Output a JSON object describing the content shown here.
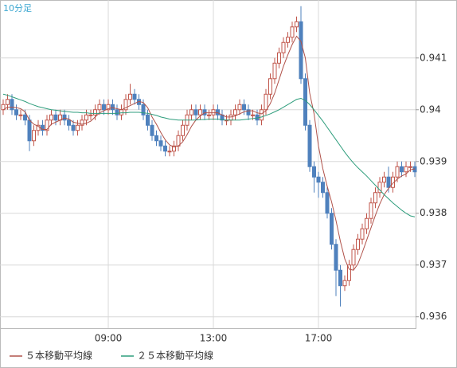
{
  "chart_data": {
    "type": "candlestick",
    "title": "10分足",
    "categories": [
      null,
      null,
      null,
      null,
      null,
      null,
      null,
      null,
      null,
      null,
      null,
      null,
      null,
      null,
      null,
      null,
      null,
      null,
      null,
      null,
      null,
      null,
      null,
      null,
      "09:00",
      null,
      null,
      null,
      null,
      null,
      null,
      null,
      null,
      null,
      null,
      null,
      null,
      null,
      null,
      null,
      null,
      null,
      null,
      null,
      null,
      null,
      null,
      null,
      "13:00",
      null,
      null,
      null,
      null,
      null,
      null,
      null,
      null,
      null,
      null,
      null,
      null,
      null,
      null,
      null,
      null,
      null,
      null,
      null,
      null,
      null,
      null,
      null,
      "17:00",
      null,
      null,
      null,
      null,
      null,
      null,
      null,
      null,
      null,
      null,
      null,
      null,
      null,
      null,
      null,
      null,
      null,
      null,
      null,
      null,
      null,
      null
    ],
    "open": [
      0.94,
      0.9401,
      0.9402,
      0.94,
      0.9399,
      0.9399,
      0.9398,
      0.9394,
      0.9396,
      0.9397,
      0.9396,
      0.9398,
      0.9399,
      0.9398,
      0.9399,
      0.9398,
      0.9397,
      0.9396,
      0.9397,
      0.9398,
      0.9399,
      0.9399,
      0.94,
      0.9401,
      0.94,
      0.9401,
      0.94,
      0.9399,
      0.94,
      0.9402,
      0.9403,
      0.9402,
      0.9401,
      0.9399,
      0.9397,
      0.9395,
      0.9394,
      0.9393,
      0.9392,
      0.9392,
      0.9393,
      0.9395,
      0.9397,
      0.9399,
      0.94,
      0.9399,
      0.94,
      0.9399,
      0.9399,
      0.94,
      0.9399,
      0.9398,
      0.9398,
      0.9399,
      0.94,
      0.9401,
      0.94,
      0.9399,
      0.9399,
      0.9398,
      0.94,
      0.9403,
      0.9406,
      0.9409,
      0.9411,
      0.9413,
      0.9414,
      0.9416,
      0.9417,
      0.9406,
      0.9397,
      0.9389,
      0.9387,
      0.9386,
      0.9384,
      0.938,
      0.9374,
      0.9369,
      0.9366,
      0.9367,
      0.937,
      0.9373,
      0.9375,
      0.9377,
      0.9379,
      0.9382,
      0.9384,
      0.9386,
      0.9387,
      0.9385,
      0.9387,
      0.9389,
      0.9388,
      0.9389,
      0.9389
    ],
    "high": [
      0.9402,
      0.9403,
      0.9403,
      0.9401,
      0.94,
      0.94,
      0.9399,
      0.9397,
      0.9398,
      0.9398,
      0.9399,
      0.94,
      0.94,
      0.94,
      0.94,
      0.9399,
      0.9398,
      0.9398,
      0.9399,
      0.94,
      0.94,
      0.9401,
      0.9402,
      0.9402,
      0.9402,
      0.9402,
      0.9401,
      0.9401,
      0.9403,
      0.9405,
      0.9404,
      0.9403,
      0.9402,
      0.94,
      0.9398,
      0.9396,
      0.9395,
      0.9394,
      0.9393,
      0.9394,
      0.9396,
      0.9398,
      0.94,
      0.9401,
      0.9401,
      0.9401,
      0.9401,
      0.94,
      0.9401,
      0.9401,
      0.94,
      0.9399,
      0.94,
      0.9401,
      0.9402,
      0.9402,
      0.9401,
      0.94,
      0.94,
      0.9401,
      0.9404,
      0.9407,
      0.941,
      0.9412,
      0.9414,
      0.9415,
      0.9417,
      0.9418,
      0.942,
      0.9407,
      0.9398,
      0.939,
      0.9388,
      0.9387,
      0.9385,
      0.9381,
      0.9375,
      0.937,
      0.9368,
      0.9371,
      0.9374,
      0.9376,
      0.9378,
      0.938,
      0.9383,
      0.9385,
      0.9387,
      0.9388,
      0.9389,
      0.9388,
      0.939,
      0.939,
      0.939,
      0.939,
      0.939
    ],
    "low": [
      0.9399,
      0.94,
      0.9399,
      0.9398,
      0.9398,
      0.9397,
      0.9392,
      0.9393,
      0.9395,
      0.9395,
      0.9395,
      0.9397,
      0.9397,
      0.9397,
      0.9397,
      0.9396,
      0.9395,
      0.9395,
      0.9396,
      0.9397,
      0.9398,
      0.9398,
      0.9399,
      0.9399,
      0.9399,
      0.9399,
      0.9398,
      0.9398,
      0.9399,
      0.9401,
      0.9401,
      0.94,
      0.9398,
      0.9396,
      0.9394,
      0.9393,
      0.9392,
      0.9391,
      0.9391,
      0.9391,
      0.9392,
      0.9394,
      0.9396,
      0.9398,
      0.9398,
      0.9398,
      0.9398,
      0.9398,
      0.9398,
      0.9398,
      0.9397,
      0.9397,
      0.9397,
      0.9398,
      0.9399,
      0.9399,
      0.9398,
      0.9398,
      0.9397,
      0.9397,
      0.9399,
      0.9402,
      0.9405,
      0.9408,
      0.941,
      0.9412,
      0.9413,
      0.9415,
      0.9405,
      0.9396,
      0.9388,
      0.9384,
      0.9383,
      0.9383,
      0.9379,
      0.9373,
      0.9364,
      0.9362,
      0.9365,
      0.9366,
      0.9369,
      0.9372,
      0.9374,
      0.9376,
      0.9378,
      0.9381,
      0.9383,
      0.9385,
      0.9384,
      0.9384,
      0.9386,
      0.9387,
      0.9387,
      0.9388,
      0.9387
    ],
    "close": [
      0.9401,
      0.9402,
      0.94,
      0.9399,
      0.9399,
      0.9398,
      0.9394,
      0.9396,
      0.9397,
      0.9396,
      0.9398,
      0.9399,
      0.9398,
      0.9399,
      0.9398,
      0.9397,
      0.9396,
      0.9397,
      0.9398,
      0.9399,
      0.9399,
      0.94,
      0.9401,
      0.94,
      0.9401,
      0.94,
      0.9399,
      0.94,
      0.9402,
      0.9403,
      0.9402,
      0.9401,
      0.9399,
      0.9397,
      0.9395,
      0.9394,
      0.9393,
      0.9392,
      0.9392,
      0.9393,
      0.9395,
      0.9397,
      0.9399,
      0.94,
      0.9399,
      0.94,
      0.9399,
      0.9399,
      0.94,
      0.9399,
      0.9398,
      0.9398,
      0.9399,
      0.94,
      0.9401,
      0.94,
      0.9399,
      0.9399,
      0.9398,
      0.94,
      0.9403,
      0.9406,
      0.9409,
      0.9411,
      0.9413,
      0.9414,
      0.9416,
      0.9417,
      0.9406,
      0.9397,
      0.9389,
      0.9387,
      0.9386,
      0.9384,
      0.938,
      0.9374,
      0.9369,
      0.9366,
      0.9367,
      0.937,
      0.9373,
      0.9375,
      0.9377,
      0.9379,
      0.9382,
      0.9384,
      0.9386,
      0.9387,
      0.9385,
      0.9387,
      0.9389,
      0.9388,
      0.9389,
      0.9389,
      0.9388
    ],
    "up_color": "#c0564b",
    "down_color": "#4f81bd",
    "series": [
      {
        "name": "５本移動平均線",
        "color": "#b0524a",
        "values": [
          0.94,
          0.94005,
          0.94005,
          0.94004,
          0.94002,
          0.93996,
          0.9398,
          0.93972,
          0.93968,
          0.93962,
          0.93962,
          0.93972,
          0.93976,
          0.9398,
          0.93984,
          0.93982,
          0.93976,
          0.93974,
          0.93972,
          0.93974,
          0.93978,
          0.93986,
          0.93994,
          0.93998,
          0.94002,
          0.94004,
          0.94002,
          0.94,
          0.94004,
          0.94008,
          0.94012,
          0.94016,
          0.94014,
          0.94004,
          0.93986,
          0.93972,
          0.93956,
          0.93942,
          0.93932,
          0.93928,
          0.9393,
          0.93938,
          0.93952,
          0.93968,
          0.9398,
          0.93988,
          0.93994,
          0.93994,
          0.93994,
          0.93994,
          0.9399,
          0.93986,
          0.93986,
          0.93988,
          0.93992,
          0.93996,
          0.93998,
          0.93998,
          0.93994,
          0.93992,
          0.93998,
          0.94012,
          0.94032,
          0.94058,
          0.94084,
          0.94106,
          0.94126,
          0.94142,
          0.94132,
          0.941,
          0.94032,
          0.93992,
          0.9393,
          0.93886,
          0.93852,
          0.93822,
          0.93786,
          0.93746,
          0.93712,
          0.93692,
          0.9369,
          0.93702,
          0.93724,
          0.93748,
          0.93772,
          0.93796,
          0.93818,
          0.93836,
          0.93848,
          0.93858,
          0.93866,
          0.93872,
          0.93876,
          0.93884,
          0.93886
        ]
      },
      {
        "name": "２５本移動平均線",
        "color": "#2e9d7c",
        "values": [
          0.9403,
          0.94028,
          0.94025,
          0.94022,
          0.94019,
          0.94016,
          0.94012,
          0.94009,
          0.94006,
          0.94004,
          0.94002,
          0.94,
          0.93999,
          0.93998,
          0.93997,
          0.93996,
          0.93995,
          0.93995,
          0.93994,
          0.93994,
          0.93993,
          0.93993,
          0.93993,
          0.93993,
          0.93993,
          0.93993,
          0.93993,
          0.93994,
          0.93994,
          0.93995,
          0.93995,
          0.93995,
          0.93994,
          0.93993,
          0.93991,
          0.93989,
          0.93986,
          0.93984,
          0.93982,
          0.93981,
          0.9398,
          0.9398,
          0.9398,
          0.9398,
          0.9398,
          0.93981,
          0.93981,
          0.93982,
          0.93982,
          0.93982,
          0.93981,
          0.9398,
          0.9398,
          0.9398,
          0.9398,
          0.93981,
          0.93982,
          0.93983,
          0.93984,
          0.93986,
          0.93989,
          0.93992,
          0.93996,
          0.94,
          0.94005,
          0.9401,
          0.94015,
          0.9402,
          0.94022,
          0.94018,
          0.9401,
          0.94,
          0.93989,
          0.93978,
          0.93966,
          0.93954,
          0.93942,
          0.9393,
          0.93918,
          0.93907,
          0.93897,
          0.93888,
          0.9388,
          0.93872,
          0.93863,
          0.93854,
          0.93845,
          0.93836,
          0.93828,
          0.9382,
          0.93813,
          0.93806,
          0.938,
          0.93795,
          0.93793
        ]
      }
    ],
    "ylim": [
      0.93578,
      0.94212
    ],
    "yticks": [
      0.936,
      0.937,
      0.938,
      0.939,
      0.94,
      0.941
    ],
    "grid": true
  }
}
